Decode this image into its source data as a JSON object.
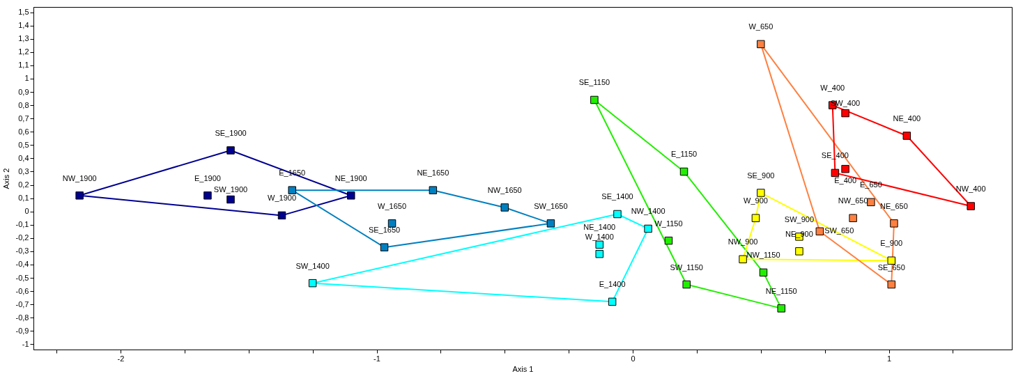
{
  "chart_data": {
    "type": "scatter",
    "xlabel": "Axis 1",
    "ylabel": "Axis 2",
    "marker": "square",
    "line_style": "solid",
    "grid": false,
    "xlim": [
      -2.34,
      1.48
    ],
    "ylim": [
      -1.04,
      1.54
    ],
    "xticks": [
      {
        "value": -2.25,
        "label": null
      },
      -2,
      {
        "value": -1.75,
        "label": null
      },
      {
        "value": -1.5,
        "label": null
      },
      {
        "value": -1.25,
        "label": null
      },
      -1,
      {
        "value": -0.75,
        "label": null
      },
      {
        "value": -0.5,
        "label": null
      },
      {
        "value": -0.25,
        "label": null
      },
      0,
      {
        "value": 0.25,
        "label": null
      },
      {
        "value": 0.5,
        "label": null
      },
      {
        "value": 0.75,
        "label": null
      },
      1,
      {
        "value": 1.25,
        "label": null
      }
    ],
    "yticks": [
      -1,
      {
        "value": -0.9,
        "label": "-0,9"
      },
      {
        "value": -0.8,
        "label": "-0,8"
      },
      {
        "value": -0.7,
        "label": "-0,7"
      },
      {
        "value": -0.6,
        "label": "-0,6"
      },
      {
        "value": -0.5,
        "label": "-0,5"
      },
      {
        "value": -0.4,
        "label": "-0,4"
      },
      {
        "value": -0.3,
        "label": "-0,3"
      },
      {
        "value": -0.2,
        "label": "-0,2"
      },
      {
        "value": -0.1,
        "label": "-0,1"
      },
      0,
      {
        "value": 0.1,
        "label": "0,1"
      },
      {
        "value": 0.2,
        "label": "0,2"
      },
      {
        "value": 0.3,
        "label": "0,3"
      },
      {
        "value": 0.4,
        "label": "0,4"
      },
      {
        "value": 0.5,
        "label": "0,5"
      },
      {
        "value": 0.6,
        "label": "0,6"
      },
      {
        "value": 0.7,
        "label": "0,7"
      },
      {
        "value": 0.8,
        "label": "0,8"
      },
      {
        "value": 0.9,
        "label": "0,9"
      },
      1,
      {
        "value": 1.1,
        "label": "1,1"
      },
      {
        "value": 1.2,
        "label": "1,2"
      },
      {
        "value": 1.3,
        "label": "1,3"
      },
      {
        "value": 1.4,
        "label": "1,4"
      },
      {
        "value": 1.5,
        "label": "1,5"
      }
    ],
    "series": [
      {
        "type": "line",
        "marker": "none",
        "color": "#000090",
        "x": [
          -2.16,
          -1.57
        ],
        "values": [
          0.12,
          0.46
        ]
      },
      {
        "type": "line",
        "marker": "none",
        "color": "#000090",
        "x": [
          -1.57,
          -1.1
        ],
        "values": [
          0.46,
          0.12
        ]
      },
      {
        "type": "line",
        "marker": "none",
        "color": "#000090",
        "x": [
          -1.37,
          -1.1
        ],
        "values": [
          -0.03,
          0.12
        ]
      },
      {
        "type": "line",
        "marker": "none",
        "color": "#000090",
        "x": [
          -2.16,
          -1.37
        ],
        "values": [
          0.12,
          -0.03
        ]
      },
      {
        "type": "line",
        "marker": "none",
        "color": "#0080c0",
        "x": [
          -1.33,
          -0.78
        ],
        "values": [
          0.16,
          0.16
        ]
      },
      {
        "type": "line",
        "marker": "none",
        "color": "#0080c0",
        "x": [
          -0.78,
          -0.5
        ],
        "values": [
          0.16,
          0.03
        ]
      },
      {
        "type": "line",
        "marker": "none",
        "color": "#0080c0",
        "x": [
          -0.5,
          -0.32
        ],
        "values": [
          0.03,
          -0.09
        ]
      },
      {
        "type": "line",
        "marker": "none",
        "color": "#0080c0",
        "x": [
          -0.97,
          -0.32
        ],
        "values": [
          -0.27,
          -0.09
        ]
      },
      {
        "type": "line",
        "marker": "none",
        "color": "#0080c0",
        "x": [
          -1.33,
          -0.97
        ],
        "values": [
          0.16,
          -0.27
        ]
      },
      {
        "type": "line",
        "marker": "none",
        "color": "#00ffff",
        "x": [
          -1.25,
          -0.06
        ],
        "values": [
          -0.54,
          -0.02
        ]
      },
      {
        "type": "line",
        "marker": "none",
        "color": "#00ffff",
        "x": [
          -0.06,
          0.06
        ],
        "values": [
          -0.02,
          -0.13
        ]
      },
      {
        "type": "line",
        "marker": "none",
        "color": "#00ffff",
        "x": [
          -0.08,
          0.06
        ],
        "values": [
          -0.68,
          -0.13
        ]
      },
      {
        "type": "line",
        "marker": "none",
        "color": "#00ffff",
        "x": [
          -1.25,
          -0.08
        ],
        "values": [
          -0.54,
          -0.68
        ]
      },
      {
        "type": "line",
        "marker": "none",
        "color": "#22ee00",
        "x": [
          -0.15,
          0.2
        ],
        "values": [
          0.84,
          0.3
        ]
      },
      {
        "type": "line",
        "marker": "none",
        "color": "#22ee00",
        "x": [
          0.2,
          0.51
        ],
        "values": [
          0.3,
          -0.46
        ]
      },
      {
        "type": "line",
        "marker": "none",
        "color": "#22ee00",
        "x": [
          0.51,
          0.58
        ],
        "values": [
          -0.46,
          -0.73
        ]
      },
      {
        "type": "line",
        "marker": "none",
        "color": "#22ee00",
        "x": [
          0.21,
          0.58
        ],
        "values": [
          -0.55,
          -0.73
        ]
      },
      {
        "type": "line",
        "marker": "none",
        "color": "#22ee00",
        "x": [
          -0.15,
          0.21
        ],
        "values": [
          0.84,
          -0.55
        ]
      },
      {
        "type": "line",
        "marker": "none",
        "color": "#ffff00",
        "x": [
          0.5,
          1.01
        ],
        "values": [
          0.14,
          -0.37
        ]
      },
      {
        "type": "line",
        "marker": "none",
        "color": "#ffff00",
        "x": [
          0.43,
          1.01
        ],
        "values": [
          -0.36,
          -0.37
        ]
      },
      {
        "type": "line",
        "marker": "none",
        "color": "#ffff00",
        "x": [
          0.43,
          0.48
        ],
        "values": [
          -0.36,
          -0.05
        ]
      },
      {
        "type": "line",
        "marker": "none",
        "color": "#ffff00",
        "x": [
          0.48,
          0.5
        ],
        "values": [
          -0.05,
          0.14
        ]
      },
      {
        "type": "line",
        "marker": "none",
        "color": "#ff8040",
        "x": [
          0.5,
          1.02
        ],
        "values": [
          1.26,
          -0.09
        ]
      },
      {
        "type": "line",
        "marker": "none",
        "color": "#ff8040",
        "x": [
          1.01,
          1.02
        ],
        "values": [
          -0.55,
          -0.09
        ]
      },
      {
        "type": "line",
        "marker": "none",
        "color": "#ff8040",
        "x": [
          0.73,
          1.01
        ],
        "values": [
          -0.15,
          -0.55
        ]
      },
      {
        "type": "line",
        "marker": "none",
        "color": "#ff8040",
        "x": [
          0.5,
          0.73
        ],
        "values": [
          1.26,
          -0.15
        ]
      },
      {
        "type": "line",
        "marker": "none",
        "color": "#ff0000",
        "x": [
          0.78,
          1.07
        ],
        "values": [
          0.8,
          0.57
        ]
      },
      {
        "type": "line",
        "marker": "none",
        "color": "#ff0000",
        "x": [
          1.07,
          1.32
        ],
        "values": [
          0.57,
          0.04
        ]
      },
      {
        "type": "line",
        "marker": "none",
        "color": "#ff0000",
        "x": [
          0.79,
          1.32
        ],
        "values": [
          0.29,
          0.04
        ]
      },
      {
        "type": "line",
        "marker": "none",
        "color": "#ff0000",
        "x": [
          0.78,
          0.79
        ],
        "values": [
          0.8,
          0.29
        ]
      },
      {
        "color": "#000090",
        "x": [
          -2.16,
          -1.57,
          -1.66,
          -1.57,
          -1.37,
          -1.1
        ],
        "values": [
          0.12,
          0.46,
          0.12,
          0.09,
          -0.03,
          0.12
        ]
      },
      {
        "color": "#0080c0",
        "x": [
          -1.33,
          -0.78,
          -0.5,
          -0.32,
          -0.97,
          -0.94
        ],
        "values": [
          0.16,
          0.16,
          0.03,
          -0.09,
          -0.27,
          -0.09
        ]
      },
      {
        "color": "#00ffff",
        "x": [
          -0.06,
          0.06,
          -0.08,
          -1.25,
          -0.13,
          -0.13
        ],
        "values": [
          -0.02,
          -0.13,
          -0.68,
          -0.54,
          -0.25,
          -0.32
        ]
      },
      {
        "color": "#22ee00",
        "x": [
          -0.15,
          0.2,
          0.14,
          0.21,
          0.58,
          0.51
        ],
        "values": [
          0.84,
          0.3,
          -0.22,
          -0.55,
          -0.73,
          -0.46
        ]
      },
      {
        "color": "#ffff00",
        "x": [
          0.5,
          0.48,
          0.43,
          1.01,
          0.65,
          0.65
        ],
        "values": [
          0.14,
          -0.05,
          -0.36,
          -0.37,
          -0.19,
          -0.3
        ]
      },
      {
        "color": "#ff8040",
        "x": [
          0.5,
          1.02,
          1.01,
          0.73,
          0.93,
          0.86
        ],
        "values": [
          1.26,
          -0.09,
          -0.55,
          -0.15,
          0.07,
          -0.05
        ]
      },
      {
        "color": "#ff0000",
        "x": [
          0.78,
          0.83,
          1.07,
          1.32,
          0.79,
          0.83
        ],
        "values": [
          0.8,
          0.74,
          0.57,
          0.04,
          0.29,
          0.32
        ]
      }
    ],
    "annotations": [
      {
        "text": "NW_1900",
        "x": -2.16,
        "y": 0.12
      },
      {
        "text": "SE_1900",
        "x": -1.57,
        "y": 0.46
      },
      {
        "text": "E_1900",
        "x": -1.66,
        "y": 0.12
      },
      {
        "text": "SW_1900",
        "x": -1.57,
        "y": 0.09
      },
      {
        "text": "W_1900",
        "x": -1.37,
        "y": -0.03
      },
      {
        "text": "NE_1900",
        "x": -1.1,
        "y": 0.12
      },
      {
        "text": "E_1650",
        "x": -1.33,
        "y": 0.16
      },
      {
        "text": "NE_1650",
        "x": -0.78,
        "y": 0.16
      },
      {
        "text": "NW_1650",
        "x": -0.5,
        "y": 0.03
      },
      {
        "text": "SW_1650",
        "x": -0.32,
        "y": -0.09
      },
      {
        "text": "SE_1650",
        "x": -0.97,
        "y": -0.27
      },
      {
        "text": "W_1650",
        "x": -0.94,
        "y": -0.09
      },
      {
        "text": "SE_1400",
        "x": -0.06,
        "y": -0.02
      },
      {
        "text": "NW_1400",
        "x": 0.06,
        "y": -0.13
      },
      {
        "text": "E_1400",
        "x": -0.08,
        "y": -0.68
      },
      {
        "text": "SW_1400",
        "x": -1.25,
        "y": -0.54
      },
      {
        "text": "NE_1400",
        "x": -0.13,
        "y": -0.25
      },
      {
        "text": "W_1400",
        "x": -0.13,
        "y": -0.32
      },
      {
        "text": "SE_1150",
        "x": -0.15,
        "y": 0.84
      },
      {
        "text": "E_1150",
        "x": 0.2,
        "y": 0.3
      },
      {
        "text": "W_1150",
        "x": 0.14,
        "y": -0.22
      },
      {
        "text": "SW_1150",
        "x": 0.21,
        "y": -0.55
      },
      {
        "text": "NE_1150",
        "x": 0.58,
        "y": -0.73
      },
      {
        "text": "NW_1150",
        "x": 0.51,
        "y": -0.46
      },
      {
        "text": "SE_900",
        "x": 0.5,
        "y": 0.14
      },
      {
        "text": "W_900",
        "x": 0.48,
        "y": -0.05
      },
      {
        "text": "NW_900",
        "x": 0.43,
        "y": -0.36
      },
      {
        "text": "E_900",
        "x": 1.01,
        "y": -0.37
      },
      {
        "text": "SW_900",
        "x": 0.65,
        "y": -0.19
      },
      {
        "text": "NE_900",
        "x": 0.65,
        "y": -0.3
      },
      {
        "text": "W_650",
        "x": 0.5,
        "y": 1.26
      },
      {
        "text": "NE_650",
        "x": 1.02,
        "y": -0.09
      },
      {
        "text": "SE_650",
        "x": 1.01,
        "y": -0.55
      },
      {
        "text": "SW_650",
        "x": 0.73,
        "y": -0.15
      },
      {
        "text": "E_650",
        "x": 0.93,
        "y": 0.07
      },
      {
        "text": "NW_650",
        "x": 0.86,
        "y": -0.05
      },
      {
        "text": "W_400",
        "x": 0.78,
        "y": 0.8
      },
      {
        "text": "SW_400",
        "x": 0.83,
        "y": 0.74
      },
      {
        "text": "NE_400",
        "x": 1.07,
        "y": 0.57
      },
      {
        "text": "NW_400",
        "x": 1.32,
        "y": 0.04
      },
      {
        "text": "SE_400",
        "x": 0.79,
        "y": 0.29
      },
      {
        "text": "E_400",
        "x": 0.83,
        "y": 0.32
      }
    ]
  }
}
